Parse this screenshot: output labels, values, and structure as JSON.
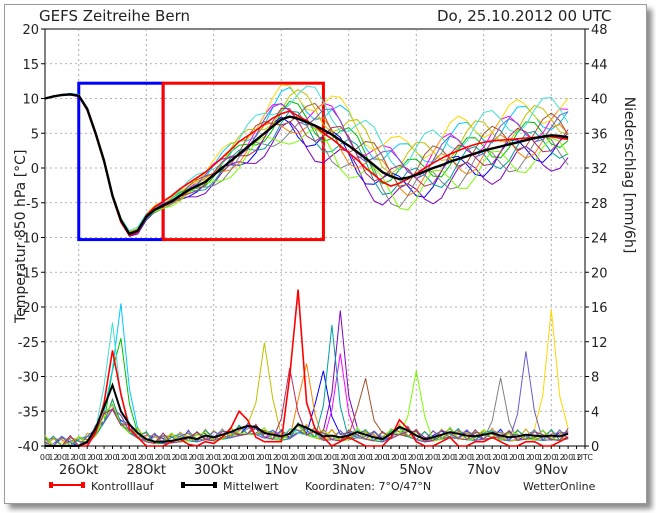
{
  "header": {
    "title": "GEFS  Zeitreihe  Bern",
    "date": "Do, 25.10.2012  00  UTC"
  },
  "footer": {
    "control_label": "Kontrolllauf",
    "mean_label": "Mittelwert",
    "coordinates": "Koordinaten: 7°O/47°N",
    "brand": "WetterOnline"
  },
  "chart_data": {
    "type": "line",
    "ylabel_left": "Temperatur 850 hPa [°C]",
    "ylabel_right": "Niederschlag [mm/6h]",
    "left_axis": {
      "min": -40,
      "max": 20,
      "ticks": [
        20,
        15,
        10,
        5,
        0,
        -5,
        -10,
        -15,
        -20,
        -25,
        -30,
        -35,
        -40
      ]
    },
    "right_axis": {
      "min": 0,
      "max": 48,
      "ticks": [
        48,
        44,
        40,
        36,
        32,
        28,
        24,
        20,
        16,
        12,
        8,
        4,
        0
      ]
    },
    "x_hour_labels": [
      "00",
      "12",
      "00",
      "12",
      "00",
      "12",
      "00",
      "12",
      "00",
      "12",
      "00",
      "12",
      "00",
      "12",
      "00",
      "12",
      "00",
      "12",
      "00",
      "12",
      "00",
      "12",
      "00",
      "12",
      "00",
      "12",
      "00",
      "12",
      "00",
      "12",
      "00",
      "12",
      "00",
      "12",
      "00",
      "12",
      "00",
      "12",
      "00",
      "12",
      "00",
      "12",
      "00",
      "12",
      "00",
      "12",
      "00",
      "12",
      "00",
      "12",
      "00",
      "12",
      "00",
      "12",
      "00",
      "12",
      "00",
      "12",
      "00",
      "12",
      "00",
      "12",
      "00",
      "12",
      "UTC"
    ],
    "x_date_labels": [
      {
        "label": "26Okt",
        "slot": 4
      },
      {
        "label": "28Okt",
        "slot": 12
      },
      {
        "label": "30Okt",
        "slot": 20
      },
      {
        "label": "1Nov",
        "slot": 28
      },
      {
        "label": "3Nov",
        "slot": 36
      },
      {
        "label": "5Nov",
        "slot": 44
      },
      {
        "label": "7Nov",
        "slot": 52
      },
      {
        "label": "9Nov",
        "slot": 60
      }
    ],
    "temperature_mean": [
      10,
      10.3,
      10.5,
      10.6,
      10.4,
      8.5,
      5,
      1,
      -4,
      -7.5,
      -9.5,
      -9,
      -7,
      -6,
      -5.4,
      -4.8,
      -4,
      -3.2,
      -2.6,
      -2,
      -1,
      0,
      1,
      2,
      3,
      4,
      5,
      6,
      7,
      7.4,
      7.1,
      6.6,
      6.1,
      5.5,
      4.8,
      4,
      3.2,
      2.3,
      1.4,
      0.4,
      -0.6,
      -1.2,
      -1.6,
      -1.4,
      -1,
      -0.5,
      0,
      0.4,
      0.9,
      1.3,
      1.7,
      2.1,
      2.5,
      2.8,
      3.1,
      3.4,
      3.7,
      4,
      4.3,
      4.5,
      4.7,
      4.6,
      4.4
    ],
    "temperature_control": [
      10,
      10.3,
      10.5,
      10.6,
      10.4,
      8.3,
      4.8,
      0.8,
      -4.2,
      -7.8,
      -9.7,
      -9.2,
      -6.8,
      -5.6,
      -4.8,
      -4,
      -3,
      -2.2,
      -1.4,
      -0.6,
      0.4,
      1.5,
      2.6,
      3.8,
      4.6,
      5.4,
      6.3,
      7.2,
      7.8,
      8.2,
      7.5,
      6.8,
      6,
      5,
      4.2,
      3.2,
      2.2,
      1.2,
      0,
      -1,
      -2,
      -2.6,
      -2.2,
      -1.6,
      -0.8,
      0,
      0.7,
      1.4,
      2,
      2.5,
      3,
      3.4,
      3.7,
      3.9,
      4,
      4.1,
      4.2,
      4.3,
      4.4,
      4.5,
      4.5,
      4.3,
      4.1
    ],
    "precipitation_mean": [
      0,
      0,
      0,
      0,
      0,
      0.5,
      2,
      4.5,
      7,
      4,
      2.5,
      1.5,
      0.8,
      0.5,
      0.5,
      0.6,
      0.8,
      1,
      0.8,
      1.2,
      1,
      1.3,
      1.6,
      2,
      2.3,
      2.2,
      1.5,
      1.3,
      1.1,
      1.4,
      2.5,
      2.1,
      1.6,
      1.1,
      1.2,
      1,
      1.2,
      1.6,
      1.3,
      1,
      0.8,
      1.4,
      2.2,
      1.8,
      1.2,
      0.8,
      1,
      1.3,
      1.6,
      1.4,
      1.2,
      1.1,
      1.3,
      1.5,
      1.2,
      1,
      1.1,
      1.3,
      1.2,
      1.1,
      1.2,
      1.1,
      1.4
    ],
    "precipitation_control": [
      0,
      0,
      0,
      0,
      0,
      0,
      1.5,
      5,
      11,
      6,
      2,
      1,
      0,
      0,
      0,
      0.5,
      0.8,
      0.2,
      0,
      0.5,
      0.3,
      1,
      2,
      4,
      3,
      1,
      0.5,
      0.5,
      0.5,
      8,
      18,
      5,
      2,
      1,
      0,
      0.5,
      1,
      0.5,
      0,
      0,
      0,
      1,
      3,
      2,
      0.5,
      0,
      0,
      0.5,
      1,
      0,
      0,
      0.5,
      0.5,
      1,
      0.5,
      0,
      0,
      0.5,
      0.5,
      0,
      0,
      0.5,
      1
    ],
    "members": [
      {
        "color": "#00c000",
        "t_offset": 0.5,
        "t_phase": 0.3,
        "p_peak": 10,
        "p_slot": 9
      },
      {
        "color": "#00c8ff",
        "t_offset": 3.0,
        "t_phase": 1.1,
        "p_peak": 14,
        "p_slot": 9
      },
      {
        "color": "#0000ff",
        "t_offset": -1.5,
        "t_phase": 2.0,
        "p_peak": 8,
        "p_slot": 33
      },
      {
        "color": "#ff00ff",
        "t_offset": 2.0,
        "t_phase": 2.7,
        "p_peak": 9,
        "p_slot": 35
      },
      {
        "color": "#8000c0",
        "t_offset": -3.0,
        "t_phase": 0.8,
        "p_peak": 15,
        "p_slot": 35
      },
      {
        "color": "#ffd700",
        "t_offset": 4.0,
        "t_phase": 1.6,
        "p_peak": 15,
        "p_slot": 60
      },
      {
        "color": "#ff8000",
        "t_offset": -0.5,
        "t_phase": 3.4,
        "p_peak": 8,
        "p_slot": 31
      },
      {
        "color": "#a0522d",
        "t_offset": 1.0,
        "t_phase": 4.2,
        "p_peak": 7,
        "p_slot": 38
      },
      {
        "color": "#808080",
        "t_offset": -2.0,
        "t_phase": 5.0,
        "p_peak": 6,
        "p_slot": 54
      },
      {
        "color": "#c0c000",
        "t_offset": 2.5,
        "t_phase": 5.8,
        "p_peak": 11,
        "p_slot": 26
      },
      {
        "color": "#00a0a0",
        "t_offset": -1.0,
        "t_phase": 0.1,
        "p_peak": 12,
        "p_slot": 34
      },
      {
        "color": "#6a5acd",
        "t_offset": 1.5,
        "t_phase": 2.4,
        "p_peak": 9,
        "p_slot": 57
      },
      {
        "color": "#7cfc00",
        "t_offset": -2.5,
        "t_phase": 3.9,
        "p_peak": 7,
        "p_slot": 44
      },
      {
        "color": "#40e0d0",
        "t_offset": 3.5,
        "t_phase": 4.6,
        "p_peak": 10,
        "p_slot": 8
      },
      {
        "color": "#b03060",
        "t_offset": -0.2,
        "t_phase": 1.4,
        "p_peak": 7,
        "p_slot": 29
      }
    ],
    "highlight_boxes": [
      {
        "color": "#0000ff",
        "from_slot": 4,
        "to_slot": 14,
        "tmin": -10.3,
        "tmax": 12.2
      },
      {
        "color": "#ff0000",
        "from_slot": 14,
        "to_slot": 33,
        "tmin": -10.3,
        "tmax": 12.2
      }
    ],
    "colors": {
      "control": "#ff0000",
      "mean": "#000000",
      "grid": "#999999"
    }
  }
}
